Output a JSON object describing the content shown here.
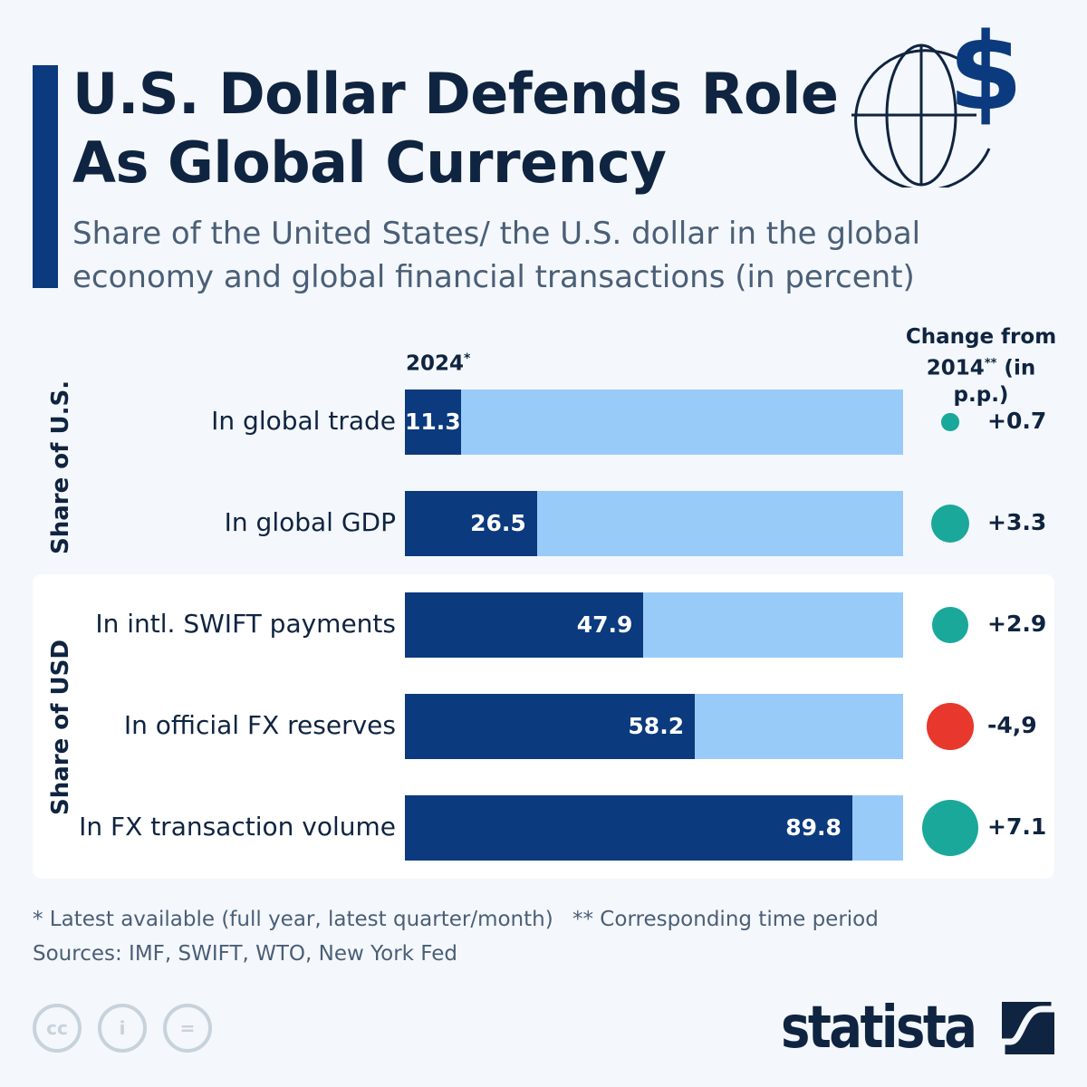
{
  "title_line1": "U.S. Dollar Defends Role",
  "title_line2": "As Global Currency",
  "subtitle": "Share of the United States/ the U.S. dollar in the global economy and global financial transactions (in percent)",
  "chart_data": {
    "type": "bar",
    "orientation": "horizontal",
    "xlim": [
      0,
      100
    ],
    "column_header": "2024",
    "column_header_mark": "*",
    "change_header_line1": "Change from",
    "change_header_line2_a": "2014",
    "change_header_line2_mark": "**",
    "change_header_line2_b": " (in p.p.)",
    "groups": [
      {
        "label": "Share of U.S.",
        "rows": [
          0,
          1
        ]
      },
      {
        "label": "Share of USD",
        "rows": [
          2,
          3,
          4
        ]
      }
    ],
    "categories": [
      "In global trade",
      "In global GDP",
      "In intl. SWIFT payments",
      "In official FX reserves",
      "In FX transaction volume"
    ],
    "values": [
      11.3,
      26.5,
      47.9,
      58.2,
      89.8
    ],
    "value_labels": [
      "11.3",
      "26.5",
      "47.9",
      "58.2",
      "89.8"
    ],
    "change": [
      0.7,
      3.3,
      2.9,
      -4.9,
      7.1
    ],
    "change_labels": [
      "+0.7",
      "+3.3",
      "+2.9",
      "-4,9",
      "+7.1"
    ]
  },
  "colors": {
    "bar": "#0b3a7e",
    "bar_remainder": "#99cbf8",
    "positive": "#1aa89a",
    "negative": "#e8372c",
    "accent": "#0b3a7e"
  },
  "footnote1": "* Latest available (full year, latest quarter/month)",
  "footnote2": "** Corresponding time period",
  "sources": "Sources: IMF, SWIFT, WTO, New York Fed",
  "license_icons": [
    "cc",
    "by",
    "nd"
  ],
  "logo": "statista"
}
